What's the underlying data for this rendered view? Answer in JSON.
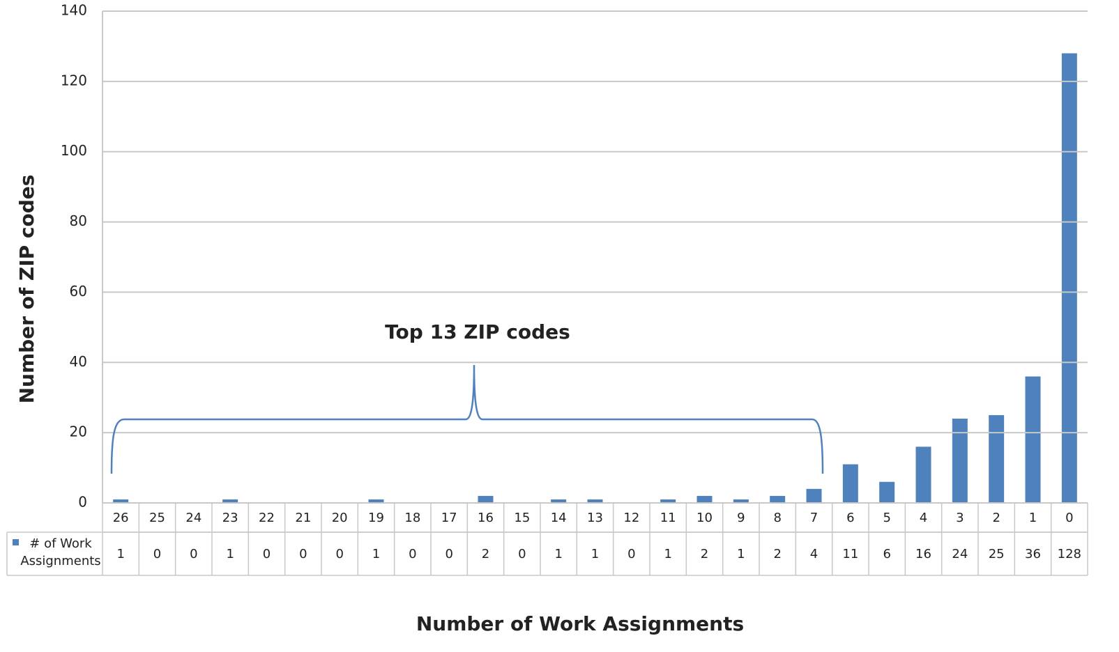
{
  "chart_data": {
    "type": "bar",
    "y_label": "Number of ZIP codes",
    "x_label": "Number of Work Assignments",
    "annotation": "Top 13 ZIP codes",
    "categories": [
      "26",
      "25",
      "24",
      "23",
      "22",
      "21",
      "20",
      "19",
      "18",
      "17",
      "16",
      "15",
      "14",
      "13",
      "12",
      "11",
      "10",
      "9",
      "8",
      "7",
      "6",
      "5",
      "4",
      "3",
      "2",
      "1",
      "0"
    ],
    "series": [
      {
        "name": "# of Work Assignments",
        "color": "#4f81bd",
        "values": [
          1,
          0,
          0,
          1,
          0,
          0,
          0,
          1,
          0,
          0,
          2,
          0,
          1,
          1,
          0,
          1,
          2,
          1,
          2,
          4,
          11,
          6,
          16,
          24,
          25,
          36,
          128
        ]
      }
    ],
    "ylim": [
      0,
      140
    ],
    "yticks": [
      0,
      20,
      40,
      60,
      80,
      100,
      120,
      140
    ],
    "grid": true
  }
}
